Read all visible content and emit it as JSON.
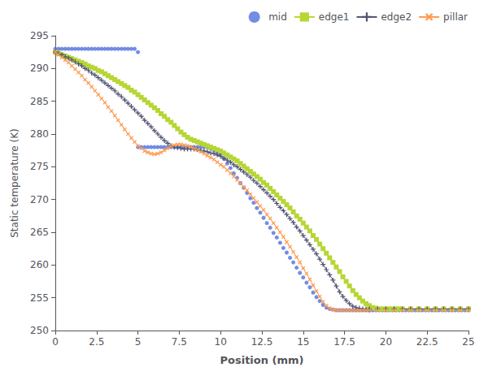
{
  "chart_data": {
    "type": "line",
    "xlabel": "Position (mm)",
    "ylabel": "Static temperature (K)",
    "xlim": [
      0,
      25.0
    ],
    "ylim": [
      250,
      295
    ],
    "xticks": [
      0,
      2.5,
      5.0,
      7.5,
      10.0,
      12.5,
      15.0,
      17.5,
      20.0,
      22.5,
      25.0
    ],
    "yticks": [
      250,
      255,
      260,
      265,
      270,
      275,
      280,
      285,
      290,
      295
    ],
    "grid": false,
    "legend": "upper right",
    "series": [
      {
        "name": "mid",
        "type": "scatter",
        "marker": "circle",
        "x": [
          0.0,
          0.2,
          0.4,
          0.6,
          0.8,
          1.0,
          1.2,
          1.4,
          1.6,
          1.8,
          2.0,
          2.2,
          2.4,
          2.6,
          2.8,
          3.0,
          3.2,
          3.4,
          3.6,
          3.8,
          4.0,
          4.2,
          4.4,
          4.6,
          4.8,
          5.0,
          5.0,
          5.2,
          5.4,
          5.6,
          5.8,
          6.0,
          6.2,
          6.4,
          6.6,
          6.8,
          7.0,
          7.2,
          7.4,
          7.6,
          7.8,
          8.0,
          8.2,
          8.4,
          8.6,
          8.8,
          9.0,
          9.2,
          9.4,
          9.6,
          9.8,
          10.0,
          10.0,
          10.2,
          10.4,
          10.6,
          10.8,
          11.0,
          11.2,
          11.4,
          11.6,
          11.8,
          12.0,
          12.2,
          12.4,
          12.6,
          12.8,
          13.0,
          13.2,
          13.4,
          13.6,
          13.8,
          14.0,
          14.2,
          14.4,
          14.6,
          14.8,
          15.0,
          15.2,
          15.4,
          15.6,
          15.8,
          16.0,
          16.2,
          16.4,
          16.6,
          16.8,
          17.0,
          17.2,
          17.4,
          17.6,
          17.8,
          18.0,
          18.2,
          18.4,
          18.6,
          18.8,
          19.0,
          19.0,
          19.2,
          19.4,
          19.6,
          19.8,
          20.0,
          20.2,
          20.4,
          20.6,
          20.8,
          21.0,
          21.2,
          21.4,
          21.6,
          21.8,
          22.0,
          22.2,
          22.4,
          22.6,
          22.8,
          23.0,
          23.2,
          23.4,
          23.6,
          23.8,
          24.0,
          24.2,
          24.4,
          24.6,
          24.8,
          25.0
        ],
        "values": [
          293.0,
          293.0,
          293.0,
          293.0,
          293.0,
          293.0,
          293.0,
          293.0,
          293.0,
          293.0,
          293.0,
          293.0,
          293.0,
          293.0,
          293.0,
          293.0,
          293.0,
          293.0,
          293.0,
          293.0,
          293.0,
          293.0,
          293.0,
          293.0,
          293.0,
          292.5,
          278.0,
          278.0,
          278.0,
          278.0,
          278.0,
          278.0,
          278.0,
          278.0,
          278.0,
          278.0,
          278.0,
          278.0,
          278.0,
          278.0,
          278.0,
          278.0,
          278.0,
          278.0,
          278.0,
          278.0,
          278.0,
          278.0,
          277.8,
          277.5,
          277.2,
          277.0,
          277.0,
          276.2,
          275.5,
          274.8,
          274.0,
          273.3,
          272.5,
          271.8,
          271.0,
          270.2,
          269.5,
          268.7,
          268.0,
          267.2,
          266.4,
          265.7,
          264.9,
          264.2,
          263.4,
          262.6,
          261.9,
          261.1,
          260.4,
          259.6,
          258.8,
          258.1,
          257.3,
          256.6,
          255.8,
          255.1,
          254.5,
          253.9,
          253.5,
          253.3,
          253.2,
          253.1,
          253.1,
          253.1,
          253.1,
          253.1,
          253.1,
          253.1,
          253.1,
          253.1,
          253.1,
          253.1,
          253.1,
          253.1,
          253.1,
          253.1,
          253.1,
          253.1,
          253.1,
          253.1,
          253.1,
          253.1,
          253.1,
          253.1,
          253.1,
          253.1,
          253.1,
          253.1,
          253.1,
          253.1,
          253.1,
          253.1,
          253.1,
          253.1,
          253.1,
          253.1,
          253.1,
          253.1,
          253.1,
          253.1,
          253.1,
          253.1,
          253.1
        ]
      },
      {
        "name": "edge1",
        "type": "line",
        "marker": "square",
        "x": [
          0.0,
          0.2,
          0.4,
          0.6,
          0.8,
          1.0,
          1.2,
          1.4,
          1.6,
          1.8,
          2.0,
          2.2,
          2.4,
          2.6,
          2.8,
          3.0,
          3.2,
          3.4,
          3.6,
          3.8,
          4.0,
          4.2,
          4.4,
          4.6,
          4.8,
          5.0,
          5.2,
          5.4,
          5.6,
          5.8,
          6.0,
          6.2,
          6.4,
          6.6,
          6.8,
          7.0,
          7.2,
          7.4,
          7.6,
          7.8,
          8.0,
          8.2,
          8.4,
          8.6,
          8.8,
          9.0,
          9.2,
          9.4,
          9.6,
          9.8,
          10.0,
          10.2,
          10.4,
          10.6,
          10.8,
          11.0,
          11.2,
          11.4,
          11.6,
          11.8,
          12.0,
          12.2,
          12.4,
          12.6,
          12.8,
          13.0,
          13.2,
          13.4,
          13.6,
          13.8,
          14.0,
          14.2,
          14.4,
          14.6,
          14.8,
          15.0,
          15.2,
          15.4,
          15.6,
          15.8,
          16.0,
          16.2,
          16.4,
          16.6,
          16.8,
          17.0,
          17.2,
          17.4,
          17.6,
          17.8,
          18.0,
          18.2,
          18.4,
          18.6,
          18.8,
          19.0,
          19.2,
          19.4,
          19.6,
          19.8,
          20.0,
          20.2,
          20.4,
          20.6,
          20.8,
          21.0,
          21.5,
          22.0,
          22.5,
          23.0,
          23.5,
          24.0,
          24.5,
          25.0
        ],
        "values": [
          292.5,
          292.3,
          292.1,
          291.9,
          291.7,
          291.5,
          291.3,
          291.1,
          290.9,
          290.7,
          290.4,
          290.2,
          290.0,
          289.7,
          289.5,
          289.2,
          288.9,
          288.6,
          288.3,
          288.0,
          287.7,
          287.4,
          287.1,
          286.7,
          286.4,
          286.0,
          285.6,
          285.2,
          284.8,
          284.4,
          284.0,
          283.6,
          283.1,
          282.7,
          282.2,
          281.8,
          281.3,
          280.8,
          280.3,
          279.9,
          279.5,
          279.2,
          279.0,
          278.8,
          278.6,
          278.4,
          278.2,
          278.0,
          277.8,
          277.6,
          277.4,
          277.1,
          276.8,
          276.5,
          276.2,
          275.9,
          275.5,
          275.1,
          274.7,
          274.3,
          273.9,
          273.5,
          273.1,
          272.6,
          272.2,
          271.7,
          271.2,
          270.7,
          270.2,
          269.7,
          269.2,
          268.7,
          268.1,
          267.5,
          267.0,
          266.4,
          265.8,
          265.2,
          264.5,
          263.9,
          263.2,
          262.5,
          261.8,
          261.1,
          260.4,
          259.7,
          259.0,
          258.2,
          257.5,
          256.8,
          256.1,
          255.5,
          255.0,
          254.5,
          254.1,
          253.8,
          253.5,
          253.4,
          253.3,
          253.3,
          253.3,
          253.3,
          253.3,
          253.3,
          253.3,
          253.3,
          253.3,
          253.3,
          253.3,
          253.3,
          253.3,
          253.3,
          253.3,
          253.3
        ]
      },
      {
        "name": "edge2",
        "type": "line",
        "marker": "plus",
        "x": [
          0.0,
          0.2,
          0.4,
          0.6,
          0.8,
          1.0,
          1.2,
          1.4,
          1.6,
          1.8,
          2.0,
          2.2,
          2.4,
          2.6,
          2.8,
          3.0,
          3.2,
          3.4,
          3.6,
          3.8,
          4.0,
          4.2,
          4.4,
          4.6,
          4.8,
          5.0,
          5.2,
          5.4,
          5.6,
          5.8,
          6.0,
          6.2,
          6.4,
          6.6,
          6.8,
          7.0,
          7.2,
          7.4,
          7.6,
          7.8,
          8.0,
          8.2,
          8.4,
          8.6,
          8.8,
          9.0,
          9.2,
          9.4,
          9.6,
          9.8,
          10.0,
          10.2,
          10.4,
          10.6,
          10.8,
          11.0,
          11.2,
          11.4,
          11.6,
          11.8,
          12.0,
          12.2,
          12.4,
          12.6,
          12.8,
          13.0,
          13.2,
          13.4,
          13.6,
          13.8,
          14.0,
          14.2,
          14.4,
          14.6,
          14.8,
          15.0,
          15.2,
          15.4,
          15.6,
          15.8,
          16.0,
          16.2,
          16.4,
          16.6,
          16.8,
          17.0,
          17.2,
          17.4,
          17.6,
          17.8,
          18.0,
          18.2,
          18.4,
          18.6,
          18.8,
          19.0,
          19.5,
          20.0,
          20.5,
          21.0,
          21.5,
          22.0,
          22.5,
          23.0,
          23.5,
          24.0,
          24.5,
          25.0
        ],
        "values": [
          292.5,
          292.3,
          292.1,
          291.8,
          291.6,
          291.3,
          291.0,
          290.7,
          290.4,
          290.0,
          289.7,
          289.3,
          289.0,
          288.6,
          288.2,
          287.8,
          287.4,
          287.0,
          286.6,
          286.1,
          285.7,
          285.2,
          284.7,
          284.2,
          283.7,
          283.2,
          282.7,
          282.1,
          281.6,
          281.1,
          280.5,
          280.0,
          279.5,
          279.0,
          278.6,
          278.2,
          278.0,
          277.9,
          277.8,
          277.7,
          277.7,
          277.7,
          277.7,
          277.6,
          277.5,
          277.4,
          277.3,
          277.1,
          277.0,
          276.8,
          276.6,
          276.3,
          276.0,
          275.7,
          275.3,
          275.0,
          274.6,
          274.2,
          273.8,
          273.4,
          272.9,
          272.5,
          272.0,
          271.5,
          271.0,
          270.5,
          270.0,
          269.4,
          268.8,
          268.3,
          267.7,
          267.1,
          266.5,
          265.8,
          265.2,
          264.5,
          263.8,
          263.1,
          262.4,
          261.7,
          260.9,
          260.1,
          259.3,
          258.5,
          257.7,
          256.8,
          255.9,
          255.2,
          254.6,
          254.1,
          253.7,
          253.5,
          253.4,
          253.3,
          253.3,
          253.3,
          253.3,
          253.3,
          253.3,
          253.3,
          253.3,
          253.3,
          253.3,
          253.3,
          253.3,
          253.3,
          253.3,
          253.3
        ]
      },
      {
        "name": "pillar",
        "type": "line",
        "marker": "x",
        "x": [
          0.0,
          0.2,
          0.4,
          0.6,
          0.8,
          1.0,
          1.2,
          1.4,
          1.6,
          1.8,
          2.0,
          2.2,
          2.4,
          2.6,
          2.8,
          3.0,
          3.2,
          3.4,
          3.6,
          3.8,
          4.0,
          4.2,
          4.4,
          4.6,
          4.8,
          5.0,
          5.2,
          5.4,
          5.6,
          5.8,
          6.0,
          6.2,
          6.4,
          6.6,
          6.8,
          7.0,
          7.2,
          7.4,
          7.6,
          7.8,
          8.0,
          8.2,
          8.4,
          8.6,
          8.8,
          9.0,
          9.2,
          9.4,
          9.6,
          9.8,
          10.0,
          10.2,
          10.4,
          10.6,
          10.8,
          11.0,
          11.2,
          11.4,
          11.6,
          11.8,
          12.0,
          12.2,
          12.4,
          12.6,
          12.8,
          13.0,
          13.2,
          13.4,
          13.6,
          13.8,
          14.0,
          14.2,
          14.4,
          14.6,
          14.8,
          15.0,
          15.2,
          15.4,
          15.6,
          15.8,
          16.0,
          16.2,
          16.4,
          16.6,
          16.8,
          17.0,
          17.2,
          17.4,
          17.6,
          17.8,
          18.0,
          18.2,
          18.4,
          18.6,
          18.8,
          19.0,
          19.5,
          20.0,
          20.5,
          21.0,
          21.5,
          22.0,
          22.5,
          23.0,
          23.5,
          24.0,
          24.5,
          25.0
        ],
        "values": [
          292.5,
          292.1,
          291.7,
          291.3,
          290.9,
          290.4,
          289.9,
          289.4,
          288.9,
          288.3,
          287.8,
          287.2,
          286.6,
          286.0,
          285.4,
          284.8,
          284.1,
          283.5,
          282.8,
          282.1,
          281.4,
          280.7,
          280.0,
          279.4,
          278.8,
          278.2,
          277.8,
          277.4,
          277.2,
          277.0,
          276.9,
          277.0,
          277.2,
          277.5,
          277.8,
          278.1,
          278.3,
          278.4,
          278.4,
          278.3,
          278.2,
          278.0,
          277.8,
          277.6,
          277.3,
          277.0,
          276.7,
          276.4,
          276.1,
          275.7,
          275.3,
          275.0,
          274.5,
          274.0,
          273.5,
          273.0,
          272.5,
          271.9,
          271.4,
          270.8,
          270.2,
          269.6,
          269.0,
          268.4,
          267.7,
          267.1,
          266.4,
          265.7,
          265.0,
          264.3,
          263.5,
          262.8,
          262.0,
          261.2,
          260.4,
          259.5,
          258.7,
          257.8,
          256.9,
          256.0,
          255.2,
          254.4,
          253.8,
          253.4,
          253.2,
          253.1,
          253.1,
          253.1,
          253.1,
          253.1,
          253.1,
          253.1,
          253.1,
          253.1,
          253.1,
          253.1,
          253.1,
          253.1,
          253.1,
          253.1,
          253.1,
          253.1,
          253.1,
          253.1,
          253.1,
          253.1,
          253.1,
          253.1
        ]
      }
    ]
  }
}
